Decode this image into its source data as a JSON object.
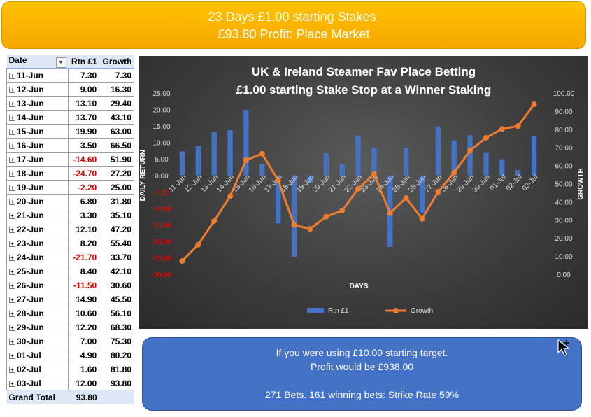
{
  "banner": {
    "line1": "23 Days £1.00 starting Stakes.",
    "line2": "£93.80 Profit: Place Market"
  },
  "pivot": {
    "headers": {
      "date": "Date",
      "rtn": "Rtn £1",
      "growth": "Growth"
    },
    "expand_glyph": "+",
    "filter_glyph": "▼",
    "rows": [
      {
        "date": "11-Jun",
        "rtn": "7.30",
        "growth": "7.30"
      },
      {
        "date": "12-Jun",
        "rtn": "9.00",
        "growth": "16.30"
      },
      {
        "date": "13-Jun",
        "rtn": "13.10",
        "growth": "29.40"
      },
      {
        "date": "14-Jun",
        "rtn": "13.70",
        "growth": "43.10"
      },
      {
        "date": "15-Jun",
        "rtn": "19.90",
        "growth": "63.00"
      },
      {
        "date": "16-Jun",
        "rtn": "3.50",
        "growth": "66.50"
      },
      {
        "date": "17-Jun",
        "rtn": "-14.60",
        "growth": "51.90"
      },
      {
        "date": "18-Jun",
        "rtn": "-24.70",
        "growth": "27.20"
      },
      {
        "date": "19-Jun",
        "rtn": "-2.20",
        "growth": "25.00"
      },
      {
        "date": "20-Jun",
        "rtn": "6.80",
        "growth": "31.80"
      },
      {
        "date": "21-Jun",
        "rtn": "3.30",
        "growth": "35.10"
      },
      {
        "date": "22-Jun",
        "rtn": "12.10",
        "growth": "47.20"
      },
      {
        "date": "23-Jun",
        "rtn": "8.20",
        "growth": "55.40"
      },
      {
        "date": "24-Jun",
        "rtn": "-21.70",
        "growth": "33.70"
      },
      {
        "date": "25-Jun",
        "rtn": "8.40",
        "growth": "42.10"
      },
      {
        "date": "26-Jun",
        "rtn": "-11.50",
        "growth": "30.60"
      },
      {
        "date": "27-Jun",
        "rtn": "14.90",
        "growth": "45.50"
      },
      {
        "date": "28-Jun",
        "rtn": "10.60",
        "growth": "56.10"
      },
      {
        "date": "29-Jun",
        "rtn": "12.20",
        "growth": "68.30"
      },
      {
        "date": "30-Jun",
        "rtn": "7.00",
        "growth": "75.30"
      },
      {
        "date": "01-Jul",
        "rtn": "4.90",
        "growth": "80.20"
      },
      {
        "date": "02-Jul",
        "rtn": "1.60",
        "growth": "81.80"
      },
      {
        "date": "03-Jul",
        "rtn": "12.00",
        "growth": "93.80"
      }
    ],
    "total": {
      "label": "Grand Total",
      "rtn": "93.80"
    }
  },
  "chart_data": {
    "type": "bar",
    "title_line1": "UK & Ireland Steamer Fav Place Betting",
    "title_line2": "£1.00 starting Stake Stop at a Winner Staking",
    "xlabel": "DAYS",
    "ylabel": "DAILY RETURN",
    "y2label": "GROWTH",
    "categories": [
      "11-Jun",
      "12-Jun",
      "13-Jun",
      "14-Jun",
      "15-Jun",
      "16-Jun",
      "17-Jun",
      "18-Jun",
      "19-Jun",
      "20-Jun",
      "21-Jun",
      "22-Jun",
      "23-Jun",
      "24-Jun",
      "25-Jun",
      "26-Jun",
      "27-Jun",
      "28-Jun",
      "29-Jun",
      "30-Jun",
      "01-Jul",
      "02-Jul",
      "03-Jul"
    ],
    "series": [
      {
        "name": "Rtn £1",
        "type": "bar",
        "axis": "left",
        "color": "#4472c4",
        "values": [
          7.3,
          9.0,
          13.1,
          13.7,
          19.9,
          3.5,
          -14.6,
          -24.7,
          -2.2,
          6.8,
          3.3,
          12.1,
          8.2,
          -21.7,
          8.4,
          -11.5,
          14.9,
          10.6,
          12.2,
          7.0,
          4.9,
          1.6,
          12.0
        ]
      },
      {
        "name": "Growth",
        "type": "line",
        "axis": "right",
        "color": "#ed7d31",
        "values": [
          7.3,
          16.3,
          29.4,
          43.1,
          63.0,
          66.5,
          51.9,
          27.2,
          25.0,
          31.8,
          35.1,
          47.2,
          55.4,
          33.7,
          42.1,
          30.6,
          45.5,
          56.1,
          68.3,
          75.3,
          80.2,
          81.8,
          93.8
        ]
      }
    ],
    "ylim": [
      -30,
      25
    ],
    "y_ticks": [
      "25.00",
      "20.00",
      "15.00",
      "10.00",
      "5.00",
      "0.00",
      "-5.00",
      "-10.00",
      "-15.00",
      "-20.00",
      "-25.00",
      "-30.00"
    ],
    "y2lim": [
      0,
      100
    ],
    "y2_ticks": [
      "100.00",
      "90.00",
      "80.00",
      "70.00",
      "60.00",
      "50.00",
      "40.00",
      "30.00",
      "20.00",
      "10.00",
      "0.00"
    ],
    "negative_tick_color": "#ff0000",
    "legend_position": "bottom",
    "grid": false
  },
  "info": {
    "line1": "If you were using £10.00 starting target.",
    "line2": "Profit would be £938.00",
    "line3": "271 Bets. 161 winning bets: Strike Rate 59%"
  }
}
